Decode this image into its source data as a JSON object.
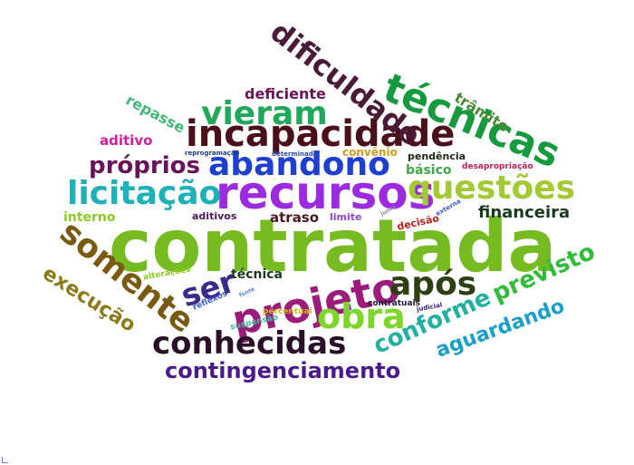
{
  "cloud": {
    "words": [
      {
        "text": "contratada",
        "color": "#77bb22"
      },
      {
        "text": "recursos",
        "color": "#9b2ae0"
      },
      {
        "text": "abandono",
        "color": "#1f3fd1"
      },
      {
        "text": "incapacidade",
        "color": "#4a0f18"
      },
      {
        "text": "projeto",
        "color": "#9b1c7a"
      },
      {
        "text": "técnicas",
        "color": "#159a3e"
      },
      {
        "text": "questões",
        "color": "#a3c934"
      },
      {
        "text": "licitação",
        "color": "#1fb0b8"
      },
      {
        "text": "vieram",
        "color": "#22a85a"
      },
      {
        "text": "somente",
        "color": "#7a5a10"
      },
      {
        "text": "dificuldade",
        "color": "#4a1a38"
      },
      {
        "text": "conhecidas",
        "color": "#2a0f28"
      },
      {
        "text": "obra",
        "color": "#7fd62a"
      },
      {
        "text": "após",
        "color": "#2e3f14"
      },
      {
        "text": "ser",
        "color": "#3a2a8a"
      },
      {
        "text": "próprios",
        "color": "#6a1258"
      },
      {
        "text": "contingenciamento",
        "color": "#4a1a8a"
      },
      {
        "text": "previsto",
        "color": "#2fbd3a"
      },
      {
        "text": "conforme",
        "color": "#22b0a0"
      },
      {
        "text": "aguardando",
        "color": "#1aa0c8"
      },
      {
        "text": "execução",
        "color": "#8a7a18"
      },
      {
        "text": "financeira",
        "color": "#1a3a20"
      },
      {
        "text": "deficiente",
        "color": "#6a1258"
      },
      {
        "text": "repasse",
        "color": "#3fb878"
      },
      {
        "text": "trâmite",
        "color": "#4a8a3a"
      },
      {
        "text": "aditivo",
        "color": "#d21e9e"
      },
      {
        "text": "interno",
        "color": "#8acc22"
      },
      {
        "text": "atraso",
        "color": "#4a1a20"
      },
      {
        "text": "técnica",
        "color": "#1a3a20"
      },
      {
        "text": "básico",
        "color": "#3fa848"
      },
      {
        "text": "pendência",
        "color": "#1a2a14"
      },
      {
        "text": "convênio",
        "color": "#d29a1a"
      },
      {
        "text": "aditivos",
        "color": "#4a1a58"
      },
      {
        "text": "limite",
        "color": "#8a4ad2"
      },
      {
        "text": "decisão",
        "color": "#c21e1e"
      },
      {
        "text": "desapropriação",
        "color": "#c21e5a"
      },
      {
        "text": "reprogramação",
        "color": "#1a3a8a"
      },
      {
        "text": "determinada",
        "color": "#2a4ab8"
      },
      {
        "text": "alterações",
        "color": "#8acc22"
      },
      {
        "text": "reflexos",
        "color": "#3a5ad2"
      },
      {
        "text": "percentual",
        "color": "#d2b81a"
      },
      {
        "text": "suspensão",
        "color": "#4ab8a0"
      },
      {
        "text": "contratuais",
        "color": "#1a1a3a"
      },
      {
        "text": "judicial",
        "color": "#3a1a8a"
      },
      {
        "text": "externa",
        "color": "#3a5ad2"
      },
      {
        "text": "junto",
        "color": "#8a8aa8"
      },
      {
        "text": "fonte",
        "color": "#4a8ad2"
      }
    ]
  }
}
